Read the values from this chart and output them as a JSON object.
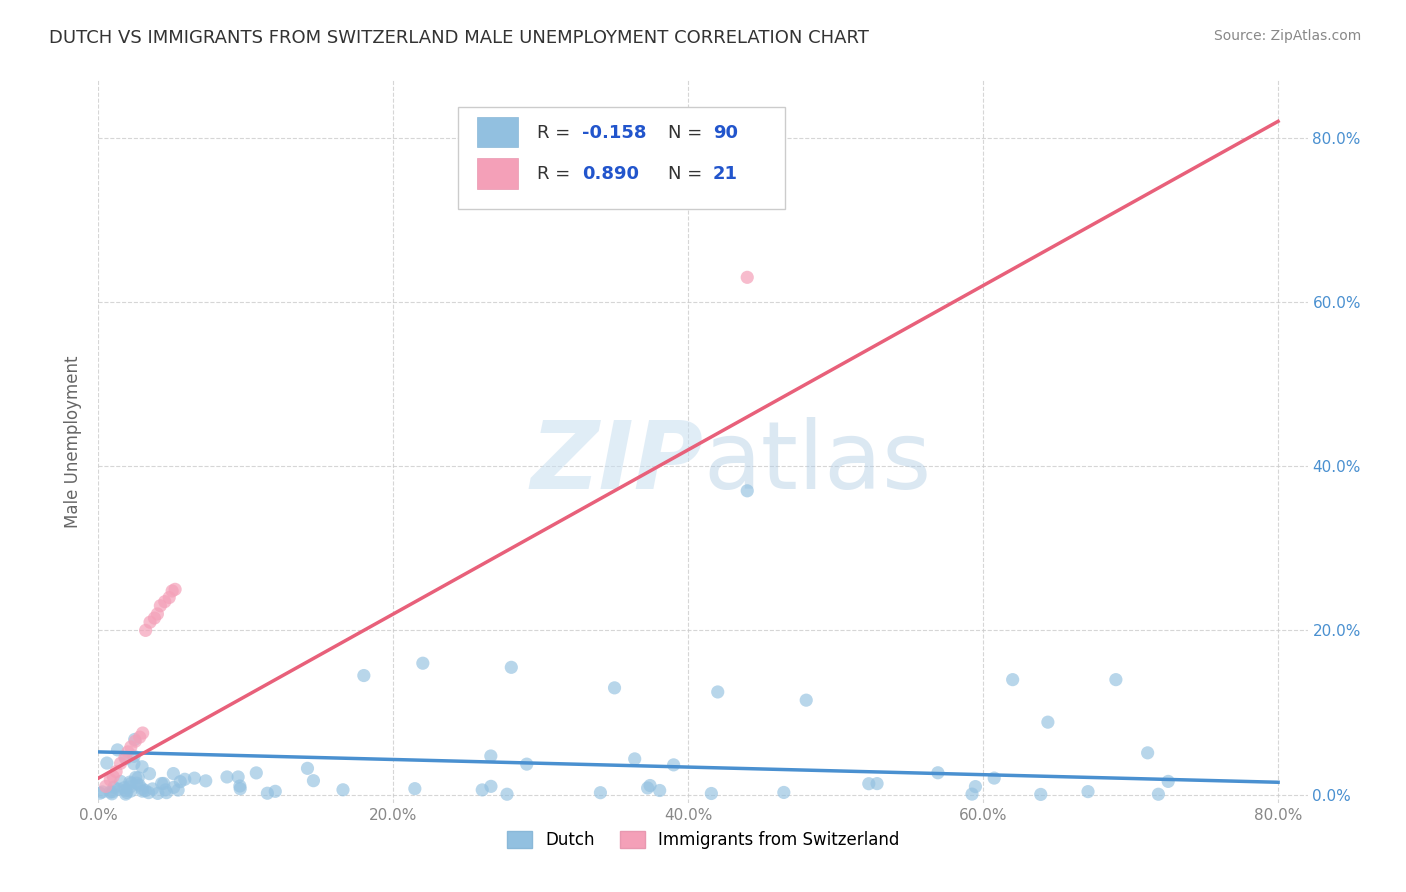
{
  "title": "DUTCH VS IMMIGRANTS FROM SWITZERLAND MALE UNEMPLOYMENT CORRELATION CHART",
  "source": "Source: ZipAtlas.com",
  "ylabel": "Male Unemployment",
  "xlim": [
    0.0,
    0.82
  ],
  "ylim": [
    -0.01,
    0.87
  ],
  "xticks": [
    0.0,
    0.2,
    0.4,
    0.6,
    0.8
  ],
  "xticklabels": [
    "0.0%",
    "20.0%",
    "40.0%",
    "60.0%",
    "80.0%"
  ],
  "yticks": [
    0.0,
    0.2,
    0.4,
    0.6,
    0.8
  ],
  "yticklabels": [
    "0.0%",
    "20.0%",
    "40.0%",
    "60.0%",
    "80.0%"
  ],
  "dutch_color": "#92c0e0",
  "swiss_color": "#f4a0b8",
  "dutch_line_color": "#4a90d0",
  "swiss_line_color": "#e8607a",
  "r_dutch": -0.158,
  "n_dutch": 90,
  "r_swiss": 0.89,
  "n_swiss": 21,
  "legend_label_dutch": "Dutch",
  "legend_label_swiss": "Immigrants from Switzerland",
  "watermark_zip": "ZIP",
  "watermark_atlas": "atlas",
  "background_color": "#ffffff",
  "title_color": "#333333",
  "axis_tick_color": "#888888",
  "grid_color": "#cccccc",
  "r_value_color": "#2255cc",
  "title_fontsize": 13,
  "source_fontsize": 10,
  "swiss_x": [
    0.005,
    0.008,
    0.01,
    0.012,
    0.015,
    0.018,
    0.02,
    0.022,
    0.025,
    0.028,
    0.03,
    0.032,
    0.035,
    0.038,
    0.04,
    0.042,
    0.045,
    0.048,
    0.05,
    0.052,
    0.44
  ],
  "swiss_y": [
    0.01,
    0.018,
    0.022,
    0.028,
    0.038,
    0.045,
    0.052,
    0.058,
    0.065,
    0.07,
    0.075,
    0.2,
    0.21,
    0.215,
    0.22,
    0.23,
    0.235,
    0.24,
    0.248,
    0.25,
    0.63
  ]
}
